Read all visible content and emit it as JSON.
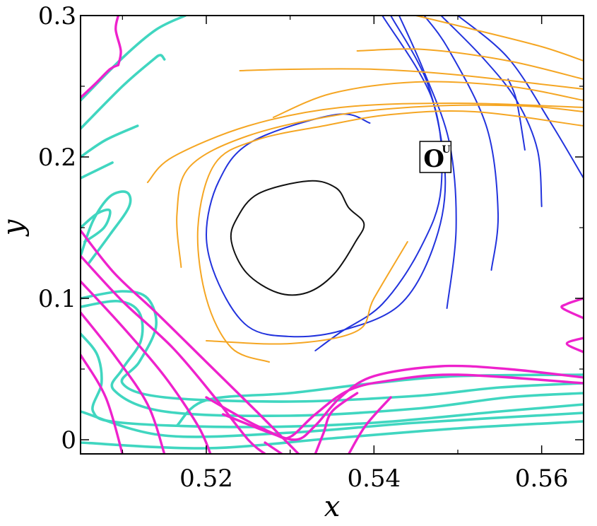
{
  "chart_data": {
    "type": "scatter",
    "title": "",
    "xlabel": "x",
    "ylabel": "y",
    "xlim": [
      0.505,
      0.565
    ],
    "ylim": [
      -0.01,
      0.3
    ],
    "x_ticks": [
      0.52,
      0.54,
      0.56
    ],
    "x_tick_labels": [
      "0.52",
      "0.54",
      "0.56"
    ],
    "y_ticks": [
      0,
      0.1,
      0.2,
      0.3
    ],
    "y_tick_labels": [
      "0",
      "0.1",
      "0.2",
      "0.3"
    ],
    "grid": false,
    "legend": "none",
    "annotation": {
      "main": "O",
      "sup": "U",
      "x": 0.5475,
      "y": 0.2
    },
    "colors": {
      "black": "#111111",
      "blue": "#2233dd",
      "orange": "#f5a623",
      "cyan": "#40d6c0",
      "magenta": "#ee22cc"
    },
    "series": [
      {
        "color": "black",
        "closed": true,
        "points": [
          [
            0.5236,
            0.156
          ],
          [
            0.5262,
            0.174
          ],
          [
            0.5322,
            0.183
          ],
          [
            0.5355,
            0.178
          ],
          [
            0.537,
            0.164
          ],
          [
            0.5388,
            0.153
          ],
          [
            0.5378,
            0.14
          ],
          [
            0.5352,
            0.117
          ],
          [
            0.532,
            0.104
          ],
          [
            0.5285,
            0.104
          ],
          [
            0.5248,
            0.118
          ],
          [
            0.523,
            0.14
          ]
        ]
      },
      {
        "color": "blue",
        "closed": false,
        "points": [
          [
            0.5395,
            0.224
          ],
          [
            0.5355,
            0.23
          ],
          [
            0.5255,
            0.211
          ],
          [
            0.5215,
            0.183
          ],
          [
            0.52,
            0.145
          ],
          [
            0.5215,
            0.11
          ],
          [
            0.525,
            0.08
          ],
          [
            0.53,
            0.073
          ],
          [
            0.536,
            0.077
          ],
          [
            0.543,
            0.095
          ],
          [
            0.547,
            0.135
          ],
          [
            0.5485,
            0.185
          ],
          [
            0.5465,
            0.25
          ],
          [
            0.542,
            0.3
          ]
        ]
      },
      {
        "color": "blue",
        "closed": false,
        "points": [
          [
            0.533,
            0.063
          ],
          [
            0.536,
            0.076
          ],
          [
            0.541,
            0.096
          ],
          [
            0.5455,
            0.135
          ],
          [
            0.548,
            0.178
          ],
          [
            0.547,
            0.24
          ],
          [
            0.541,
            0.3
          ]
        ]
      },
      {
        "color": "blue",
        "closed": false,
        "points": [
          [
            0.5487,
            0.093
          ],
          [
            0.5498,
            0.15
          ],
          [
            0.549,
            0.21
          ],
          [
            0.546,
            0.26
          ],
          [
            0.543,
            0.3
          ]
        ]
      },
      {
        "color": "blue",
        "closed": false,
        "points": [
          [
            0.554,
            0.12
          ],
          [
            0.5548,
            0.16
          ],
          [
            0.5535,
            0.22
          ],
          [
            0.549,
            0.275
          ],
          [
            0.546,
            0.3
          ]
        ]
      },
      {
        "color": "blue",
        "closed": false,
        "points": [
          [
            0.56,
            0.165
          ],
          [
            0.5595,
            0.205
          ],
          [
            0.557,
            0.24
          ],
          [
            0.553,
            0.27
          ],
          [
            0.548,
            0.3
          ]
        ]
      },
      {
        "color": "blue",
        "closed": false,
        "points": [
          [
            0.558,
            0.205
          ],
          [
            0.557,
            0.24
          ],
          [
            0.556,
            0.255
          ]
        ]
      },
      {
        "color": "blue",
        "closed": false,
        "points": [
          [
            0.565,
            0.185
          ],
          [
            0.561,
            0.225
          ],
          [
            0.556,
            0.27
          ],
          [
            0.55,
            0.3
          ]
        ]
      },
      {
        "color": "orange",
        "closed": false,
        "points": [
          [
            0.5275,
            0.055
          ],
          [
            0.523,
            0.065
          ],
          [
            0.52,
            0.1
          ],
          [
            0.519,
            0.15
          ],
          [
            0.521,
            0.195
          ],
          [
            0.526,
            0.212
          ],
          [
            0.534,
            0.222
          ],
          [
            0.542,
            0.23
          ],
          [
            0.552,
            0.232
          ],
          [
            0.565,
            0.222
          ]
        ]
      },
      {
        "color": "orange",
        "closed": false,
        "points": [
          [
            0.517,
            0.122
          ],
          [
            0.5165,
            0.16
          ],
          [
            0.518,
            0.193
          ],
          [
            0.525,
            0.215
          ],
          [
            0.536,
            0.23
          ],
          [
            0.547,
            0.236
          ],
          [
            0.558,
            0.236
          ],
          [
            0.565,
            0.232
          ]
        ]
      },
      {
        "color": "orange",
        "closed": false,
        "points": [
          [
            0.513,
            0.182
          ],
          [
            0.516,
            0.2
          ],
          [
            0.525,
            0.222
          ],
          [
            0.536,
            0.235
          ],
          [
            0.55,
            0.238
          ],
          [
            0.565,
            0.235
          ]
        ]
      },
      {
        "color": "orange",
        "closed": false,
        "points": [
          [
            0.528,
            0.228
          ],
          [
            0.535,
            0.245
          ],
          [
            0.545,
            0.253
          ],
          [
            0.556,
            0.25
          ],
          [
            0.565,
            0.24
          ]
        ]
      },
      {
        "color": "orange",
        "closed": false,
        "points": [
          [
            0.524,
            0.261
          ],
          [
            0.53,
            0.262
          ],
          [
            0.54,
            0.262
          ],
          [
            0.55,
            0.258
          ],
          [
            0.565,
            0.248
          ]
        ]
      },
      {
        "color": "orange",
        "closed": false,
        "points": [
          [
            0.538,
            0.275
          ],
          [
            0.546,
            0.276
          ],
          [
            0.556,
            0.268
          ],
          [
            0.565,
            0.255
          ]
        ]
      },
      {
        "color": "orange",
        "closed": false,
        "points": [
          [
            0.545,
            0.3
          ],
          [
            0.552,
            0.29
          ],
          [
            0.56,
            0.278
          ],
          [
            0.565,
            0.268
          ]
        ]
      },
      {
        "color": "orange",
        "closed": false,
        "points": [
          [
            0.52,
            0.07
          ],
          [
            0.53,
            0.068
          ],
          [
            0.538,
            0.077
          ],
          [
            0.54,
            0.1
          ],
          [
            0.544,
            0.14
          ]
        ]
      },
      {
        "color": "cyan",
        "closed": false,
        "points": [
          [
            0.505,
            0.24
          ],
          [
            0.51,
            0.27
          ],
          [
            0.514,
            0.29
          ],
          [
            0.5175,
            0.3
          ]
        ]
      },
      {
        "color": "cyan",
        "closed": false,
        "points": [
          [
            0.505,
            0.22
          ],
          [
            0.51,
            0.25
          ],
          [
            0.5135,
            0.268
          ],
          [
            0.5145,
            0.272
          ],
          [
            0.515,
            0.269
          ]
        ]
      },
      {
        "color": "cyan",
        "closed": false,
        "points": [
          [
            0.505,
            0.2
          ],
          [
            0.508,
            0.212
          ],
          [
            0.5118,
            0.222
          ]
        ]
      },
      {
        "color": "cyan",
        "closed": false,
        "points": [
          [
            0.505,
            0.185
          ],
          [
            0.5088,
            0.196
          ]
        ]
      },
      {
        "color": "cyan",
        "closed": false,
        "points": [
          [
            0.505,
            0.13
          ],
          [
            0.5065,
            0.155
          ],
          [
            0.5085,
            0.172
          ],
          [
            0.5105,
            0.175
          ],
          [
            0.5108,
            0.165
          ],
          [
            0.5085,
            0.145
          ],
          [
            0.506,
            0.125
          ]
        ]
      },
      {
        "color": "cyan",
        "closed": false,
        "points": [
          [
            0.505,
            0.15
          ],
          [
            0.507,
            0.16
          ],
          [
            0.5085,
            0.162
          ],
          [
            0.5078,
            0.15
          ],
          [
            0.5055,
            0.14
          ]
        ]
      },
      {
        "color": "cyan",
        "closed": false,
        "points": [
          [
            0.505,
            0.1
          ],
          [
            0.51,
            0.105
          ],
          [
            0.513,
            0.1
          ],
          [
            0.514,
            0.08
          ],
          [
            0.512,
            0.055
          ],
          [
            0.51,
            0.04
          ],
          [
            0.515,
            0.03
          ],
          [
            0.53,
            0.027
          ],
          [
            0.545,
            0.031
          ],
          [
            0.555,
            0.037
          ],
          [
            0.565,
            0.04
          ]
        ]
      },
      {
        "color": "cyan",
        "closed": false,
        "points": [
          [
            0.505,
            0.094
          ],
          [
            0.5095,
            0.098
          ],
          [
            0.512,
            0.09
          ],
          [
            0.5122,
            0.07
          ],
          [
            0.51,
            0.05
          ],
          [
            0.509,
            0.035
          ],
          [
            0.515,
            0.02
          ],
          [
            0.53,
            0.017
          ],
          [
            0.545,
            0.022
          ],
          [
            0.556,
            0.03
          ],
          [
            0.565,
            0.033
          ]
        ]
      },
      {
        "color": "cyan",
        "closed": false,
        "points": [
          [
            0.505,
            0.075
          ],
          [
            0.507,
            0.06
          ],
          [
            0.5075,
            0.04
          ],
          [
            0.5065,
            0.02
          ],
          [
            0.51,
            0.012
          ],
          [
            0.525,
            0.009
          ],
          [
            0.54,
            0.012
          ],
          [
            0.555,
            0.02
          ],
          [
            0.565,
            0.025
          ]
        ]
      },
      {
        "color": "cyan",
        "closed": false,
        "points": [
          [
            0.505,
            0.02
          ],
          [
            0.515,
            0.003
          ],
          [
            0.53,
            0.005
          ],
          [
            0.545,
            0.012
          ],
          [
            0.565,
            0.019
          ]
        ]
      },
      {
        "color": "cyan",
        "closed": false,
        "points": [
          [
            0.505,
            -0.002
          ],
          [
            0.52,
            -0.006
          ],
          [
            0.535,
            0.001
          ],
          [
            0.55,
            0.008
          ],
          [
            0.565,
            0.013
          ]
        ]
      },
      {
        "color": "cyan",
        "closed": false,
        "points": [
          [
            0.5165,
            0.01
          ],
          [
            0.52,
            0.028
          ],
          [
            0.53,
            0.033
          ],
          [
            0.54,
            0.04
          ],
          [
            0.55,
            0.045
          ],
          [
            0.565,
            0.046
          ]
        ]
      },
      {
        "color": "magenta",
        "closed": false,
        "points": [
          [
            0.5095,
            0.3
          ],
          [
            0.5092,
            0.29
          ],
          [
            0.5098,
            0.275
          ],
          [
            0.5095,
            0.265
          ]
        ]
      },
      {
        "color": "magenta",
        "closed": false,
        "points": [
          [
            0.5095,
            0.265
          ],
          [
            0.5085,
            0.262
          ],
          [
            0.5068,
            0.252
          ],
          [
            0.505,
            0.242
          ]
        ]
      },
      {
        "color": "magenta",
        "closed": false,
        "points": [
          [
            0.505,
            0.148
          ],
          [
            0.509,
            0.118
          ],
          [
            0.514,
            0.09
          ],
          [
            0.52,
            0.055
          ],
          [
            0.526,
            0.02
          ],
          [
            0.531,
            -0.01
          ]
        ]
      },
      {
        "color": "magenta",
        "closed": false,
        "points": [
          [
            0.505,
            0.13
          ],
          [
            0.51,
            0.098
          ],
          [
            0.516,
            0.065
          ],
          [
            0.521,
            0.03
          ],
          [
            0.525,
            0.0
          ],
          [
            0.527,
            -0.01
          ]
        ]
      },
      {
        "color": "magenta",
        "closed": false,
        "points": [
          [
            0.505,
            0.112
          ],
          [
            0.51,
            0.08
          ],
          [
            0.515,
            0.045
          ],
          [
            0.519,
            0.01
          ],
          [
            0.5205,
            -0.01
          ]
        ]
      },
      {
        "color": "magenta",
        "closed": false,
        "points": [
          [
            0.505,
            0.09
          ],
          [
            0.509,
            0.06
          ],
          [
            0.513,
            0.025
          ],
          [
            0.515,
            -0.01
          ]
        ]
      },
      {
        "color": "magenta",
        "closed": false,
        "points": [
          [
            0.505,
            0.06
          ],
          [
            0.508,
            0.03
          ],
          [
            0.51,
            -0.01
          ]
        ]
      },
      {
        "color": "magenta",
        "closed": false,
        "points": [
          [
            0.52,
            0.03
          ],
          [
            0.526,
            0.01
          ],
          [
            0.5305,
            0.0
          ],
          [
            0.533,
            0.01
          ],
          [
            0.536,
            0.03
          ],
          [
            0.54,
            0.045
          ],
          [
            0.548,
            0.052
          ],
          [
            0.556,
            0.05
          ],
          [
            0.565,
            0.044
          ]
        ]
      },
      {
        "color": "magenta",
        "closed": false,
        "points": [
          [
            0.522,
            0.018
          ],
          [
            0.528,
            0.004
          ],
          [
            0.53,
            0.002
          ],
          [
            0.533,
            0.018
          ],
          [
            0.537,
            0.035
          ],
          [
            0.542,
            0.042
          ],
          [
            0.55,
            0.046
          ],
          [
            0.565,
            0.04
          ]
        ]
      },
      {
        "color": "magenta",
        "closed": false,
        "points": [
          [
            0.527,
            -0.002
          ],
          [
            0.529,
            -0.01
          ]
        ]
      },
      {
        "color": "magenta",
        "closed": false,
        "points": [
          [
            0.533,
            -0.01
          ],
          [
            0.534,
            0.005
          ],
          [
            0.535,
            0.02
          ],
          [
            0.538,
            0.033
          ]
        ]
      },
      {
        "color": "magenta",
        "closed": false,
        "points": [
          [
            0.537,
            -0.01
          ],
          [
            0.539,
            0.01
          ],
          [
            0.542,
            0.03
          ]
        ]
      },
      {
        "color": "magenta",
        "closed": false,
        "points": [
          [
            0.565,
            0.1
          ],
          [
            0.563,
            0.096
          ],
          [
            0.5625,
            0.093
          ],
          [
            0.565,
            0.086
          ]
        ]
      },
      {
        "color": "magenta",
        "closed": false,
        "points": [
          [
            0.565,
            0.072
          ],
          [
            0.563,
            0.068
          ],
          [
            0.565,
            0.062
          ]
        ]
      }
    ]
  }
}
